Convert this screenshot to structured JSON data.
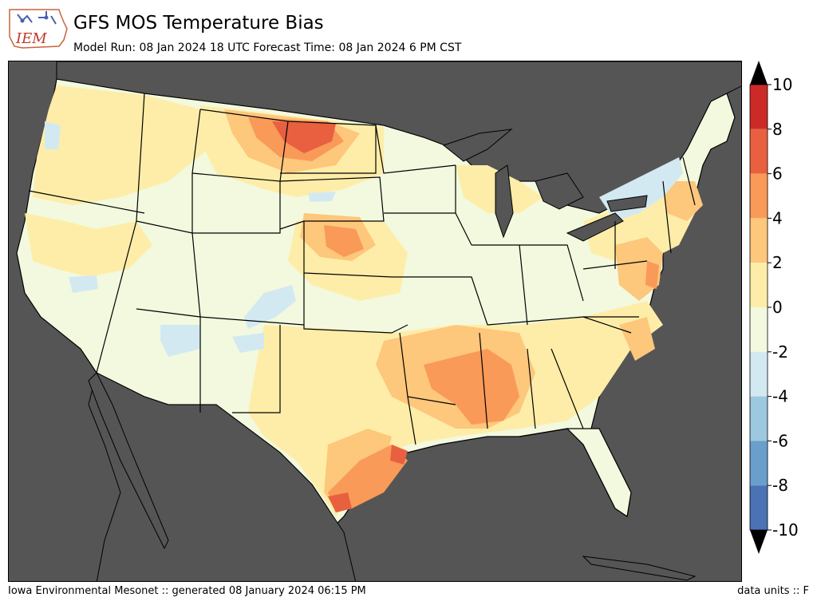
{
  "header": {
    "logo_text": "IEM",
    "title": "GFS MOS Temperature Bias",
    "subtitle": "Model Run: 08 Jan 2024 18 UTC Forecast Time: 08 Jan 2024 6 PM CST"
  },
  "footer": {
    "left": "Iowa Environmental Mesonet :: generated 08 January 2024 06:15 PM",
    "right": "data units :: F"
  },
  "colorbar": {
    "levels": [
      {
        "value": -10,
        "color": "#4a72b5"
      },
      {
        "value": -8,
        "color": "#6a9fcb"
      },
      {
        "value": -6,
        "color": "#9cc8e0"
      },
      {
        "value": -4,
        "color": "#d3e9f2"
      },
      {
        "value": -2,
        "color": "#f2f9de"
      },
      {
        "value": 0,
        "color": "#feeda8"
      },
      {
        "value": 2,
        "color": "#fdc77c"
      },
      {
        "value": 4,
        "color": "#f99a58"
      },
      {
        "value": 6,
        "color": "#e8603f"
      },
      {
        "value": 8,
        "color": "#cc2a26"
      }
    ],
    "tick_labels": [
      "-10",
      "-8",
      "-6",
      "-4",
      "-2",
      "0",
      "2",
      "4",
      "6",
      "8",
      "10"
    ],
    "over_color": "#000000",
    "under_color": "#000000"
  },
  "map": {
    "ocean_color": "#555555",
    "land_base_color": "#f2f9de"
  }
}
